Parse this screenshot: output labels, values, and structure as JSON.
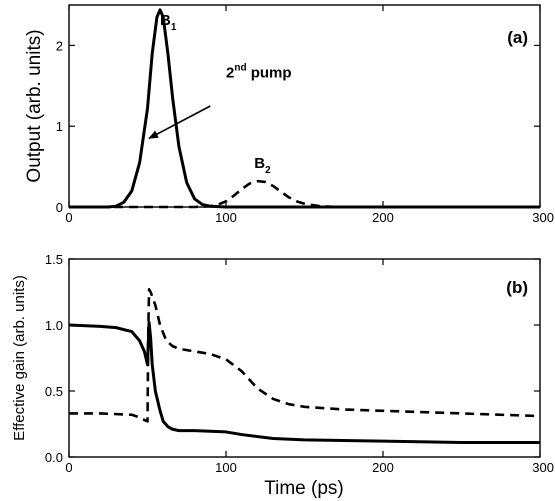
{
  "chart_data": [
    {
      "panel": "(a)",
      "type": "line",
      "xlim": [
        0,
        300
      ],
      "ylim": [
        0,
        2.5
      ],
      "xticks": [
        "0",
        "100",
        "200",
        "300"
      ],
      "yticks": [
        "0",
        "1",
        "2"
      ],
      "ylabel": "Output (arb. units)",
      "xlabel": "",
      "grid": false,
      "series": [
        {
          "style": "solid",
          "x": [
            0,
            25,
            30,
            35,
            40,
            45,
            50,
            53,
            56,
            58,
            60,
            63,
            66,
            70,
            75,
            80,
            85,
            90,
            100,
            120,
            300
          ],
          "y": [
            0,
            0.0,
            0.01,
            0.06,
            0.2,
            0.55,
            1.22,
            1.9,
            2.35,
            2.44,
            2.35,
            1.9,
            1.35,
            0.75,
            0.3,
            0.1,
            0.03,
            0.01,
            0,
            0,
            0
          ]
        },
        {
          "style": "dashed",
          "x": [
            0,
            80,
            90,
            95,
            100,
            105,
            110,
            115,
            120,
            125,
            130,
            135,
            140,
            145,
            150,
            160,
            170,
            300
          ],
          "y": [
            0,
            0,
            0.01,
            0.03,
            0.07,
            0.14,
            0.22,
            0.29,
            0.32,
            0.31,
            0.26,
            0.19,
            0.12,
            0.07,
            0.04,
            0.01,
            0,
            0
          ]
        }
      ],
      "annotations": {
        "b1": {
          "main": "B",
          "sub": "1",
          "x": 58,
          "y": 2.25
        },
        "b2": {
          "main": "B",
          "sub": "2",
          "x": 118,
          "y": 0.48
        },
        "pump": {
          "main": "2",
          "sup": "nd",
          "tail": " pump",
          "x": 100,
          "y": 1.6,
          "arrow_from": [
            90,
            1.25
          ],
          "arrow_to": [
            51,
            0.85
          ]
        }
      }
    },
    {
      "panel": "(b)",
      "type": "line",
      "xlim": [
        0,
        300
      ],
      "ylim": [
        0,
        1.5
      ],
      "xticks": [
        "0",
        "100",
        "200",
        "300"
      ],
      "yticks": [
        "0.0",
        "0.5",
        "1.0",
        "1.5"
      ],
      "ylabel": "Effective gain (arb. units)",
      "xlabel": "Time (ps)",
      "grid": false,
      "series": [
        {
          "style": "solid",
          "x": [
            0,
            20,
            30,
            40,
            45,
            48,
            50,
            51,
            52,
            53,
            55,
            58,
            60,
            63,
            66,
            70,
            80,
            100,
            110,
            130,
            150,
            200,
            250,
            300
          ],
          "y": [
            1.0,
            0.99,
            0.98,
            0.95,
            0.88,
            0.8,
            0.7,
            1.02,
            0.9,
            0.7,
            0.5,
            0.35,
            0.27,
            0.23,
            0.21,
            0.2,
            0.2,
            0.19,
            0.17,
            0.14,
            0.13,
            0.12,
            0.11,
            0.11
          ]
        },
        {
          "style": "dashed",
          "x": [
            0,
            20,
            40,
            45,
            48,
            50,
            50.5,
            51,
            52,
            55,
            58,
            62,
            66,
            70,
            80,
            90,
            100,
            110,
            120,
            130,
            140,
            150,
            175,
            200,
            250,
            300
          ],
          "y": [
            0.33,
            0.33,
            0.32,
            0.3,
            0.28,
            0.27,
            0.95,
            1.27,
            1.25,
            1.15,
            1.0,
            0.88,
            0.84,
            0.82,
            0.8,
            0.78,
            0.74,
            0.65,
            0.52,
            0.44,
            0.4,
            0.38,
            0.36,
            0.35,
            0.33,
            0.31
          ]
        }
      ]
    }
  ]
}
